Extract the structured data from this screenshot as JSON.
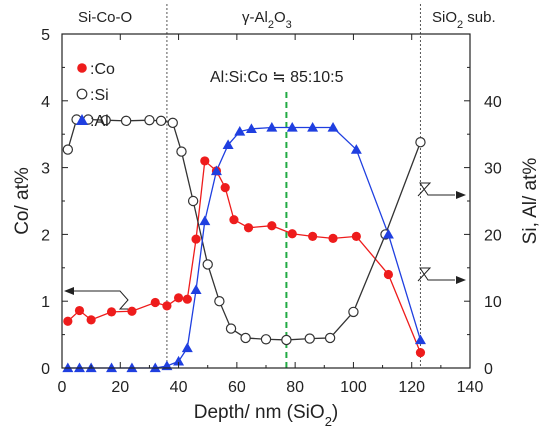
{
  "chart_data": {
    "type": "line",
    "xlabel": "Depth/ nm (SiO",
    "xlabel_sub": "2",
    "xlabel_tail": ")",
    "ylabel_left": "Co/ at%",
    "ylabel_right": "Si, Al/ at%",
    "xlim": [
      0,
      140
    ],
    "ylim_left": [
      0,
      5
    ],
    "ylim_right": [
      0,
      50
    ],
    "x_ticks": [
      "0",
      "20",
      "40",
      "60",
      "80",
      "100",
      "120",
      "140"
    ],
    "y_left_ticks": [
      "0",
      "1",
      "2",
      "3",
      "4",
      "5"
    ],
    "y_right_ticks": [
      "0",
      "10",
      "20",
      "30",
      "40"
    ],
    "regions": [
      {
        "label": "Si-Co-O",
        "sub": "",
        "tail": ""
      },
      {
        "label": "γ-Al",
        "sub": "2",
        "mid": "O",
        "sub2": "3"
      },
      {
        "label": "SiO",
        "sub": "2",
        "tail": " sub."
      }
    ],
    "region_boundaries_x": [
      36,
      123
    ],
    "marker_line_x": 77,
    "annotation": "Al:Si:Co ≒ 85:10:5",
    "legend": [
      ":Co",
      ":Si",
      ":Al"
    ],
    "colors": {
      "co": "#ee1c1c",
      "si": "#333333",
      "al": "#1f3fe0",
      "marker": "#22aa44"
    },
    "series": [
      {
        "name": ":Co",
        "axis": "left",
        "marker": "filled-circle",
        "x": [
          2,
          6,
          10,
          17,
          24,
          32,
          36,
          40,
          43,
          46,
          49,
          53,
          56,
          59,
          64,
          72,
          79,
          86,
          93,
          101,
          112,
          123
        ],
        "y": [
          0.7,
          0.86,
          0.72,
          0.84,
          0.85,
          0.98,
          0.93,
          1.05,
          1.03,
          1.93,
          3.1,
          2.95,
          2.7,
          2.22,
          2.1,
          2.13,
          2.01,
          1.97,
          1.94,
          1.97,
          1.4,
          0.23
        ]
      },
      {
        "name": ":Si",
        "axis": "right",
        "marker": "open-circle",
        "x": [
          2,
          5,
          9,
          15,
          22,
          30,
          34,
          38,
          41,
          45,
          50,
          54,
          58,
          63,
          70,
          77,
          85,
          92,
          100,
          111,
          123
        ],
        "y": [
          32.7,
          37.2,
          37.2,
          37.1,
          37.0,
          37.1,
          37.0,
          36.7,
          32.4,
          25.0,
          15.5,
          10.0,
          5.9,
          4.5,
          4.3,
          4.2,
          4.4,
          4.5,
          8.4,
          20.0,
          33.8
        ]
      },
      {
        "name": ":Al",
        "axis": "right",
        "marker": "filled-triangle",
        "x": [
          2,
          6,
          10,
          17,
          24,
          32,
          36,
          40,
          43,
          46,
          49,
          53,
          57,
          61,
          65,
          72,
          79,
          86,
          93,
          101,
          112,
          123
        ],
        "y": [
          0,
          0,
          0,
          0,
          0,
          0,
          0.3,
          1.0,
          3.0,
          11.7,
          22.0,
          29.5,
          33.4,
          35.4,
          35.8,
          36.0,
          36.0,
          36.0,
          36.0,
          32.7,
          20.0,
          4.2
        ]
      }
    ]
  }
}
